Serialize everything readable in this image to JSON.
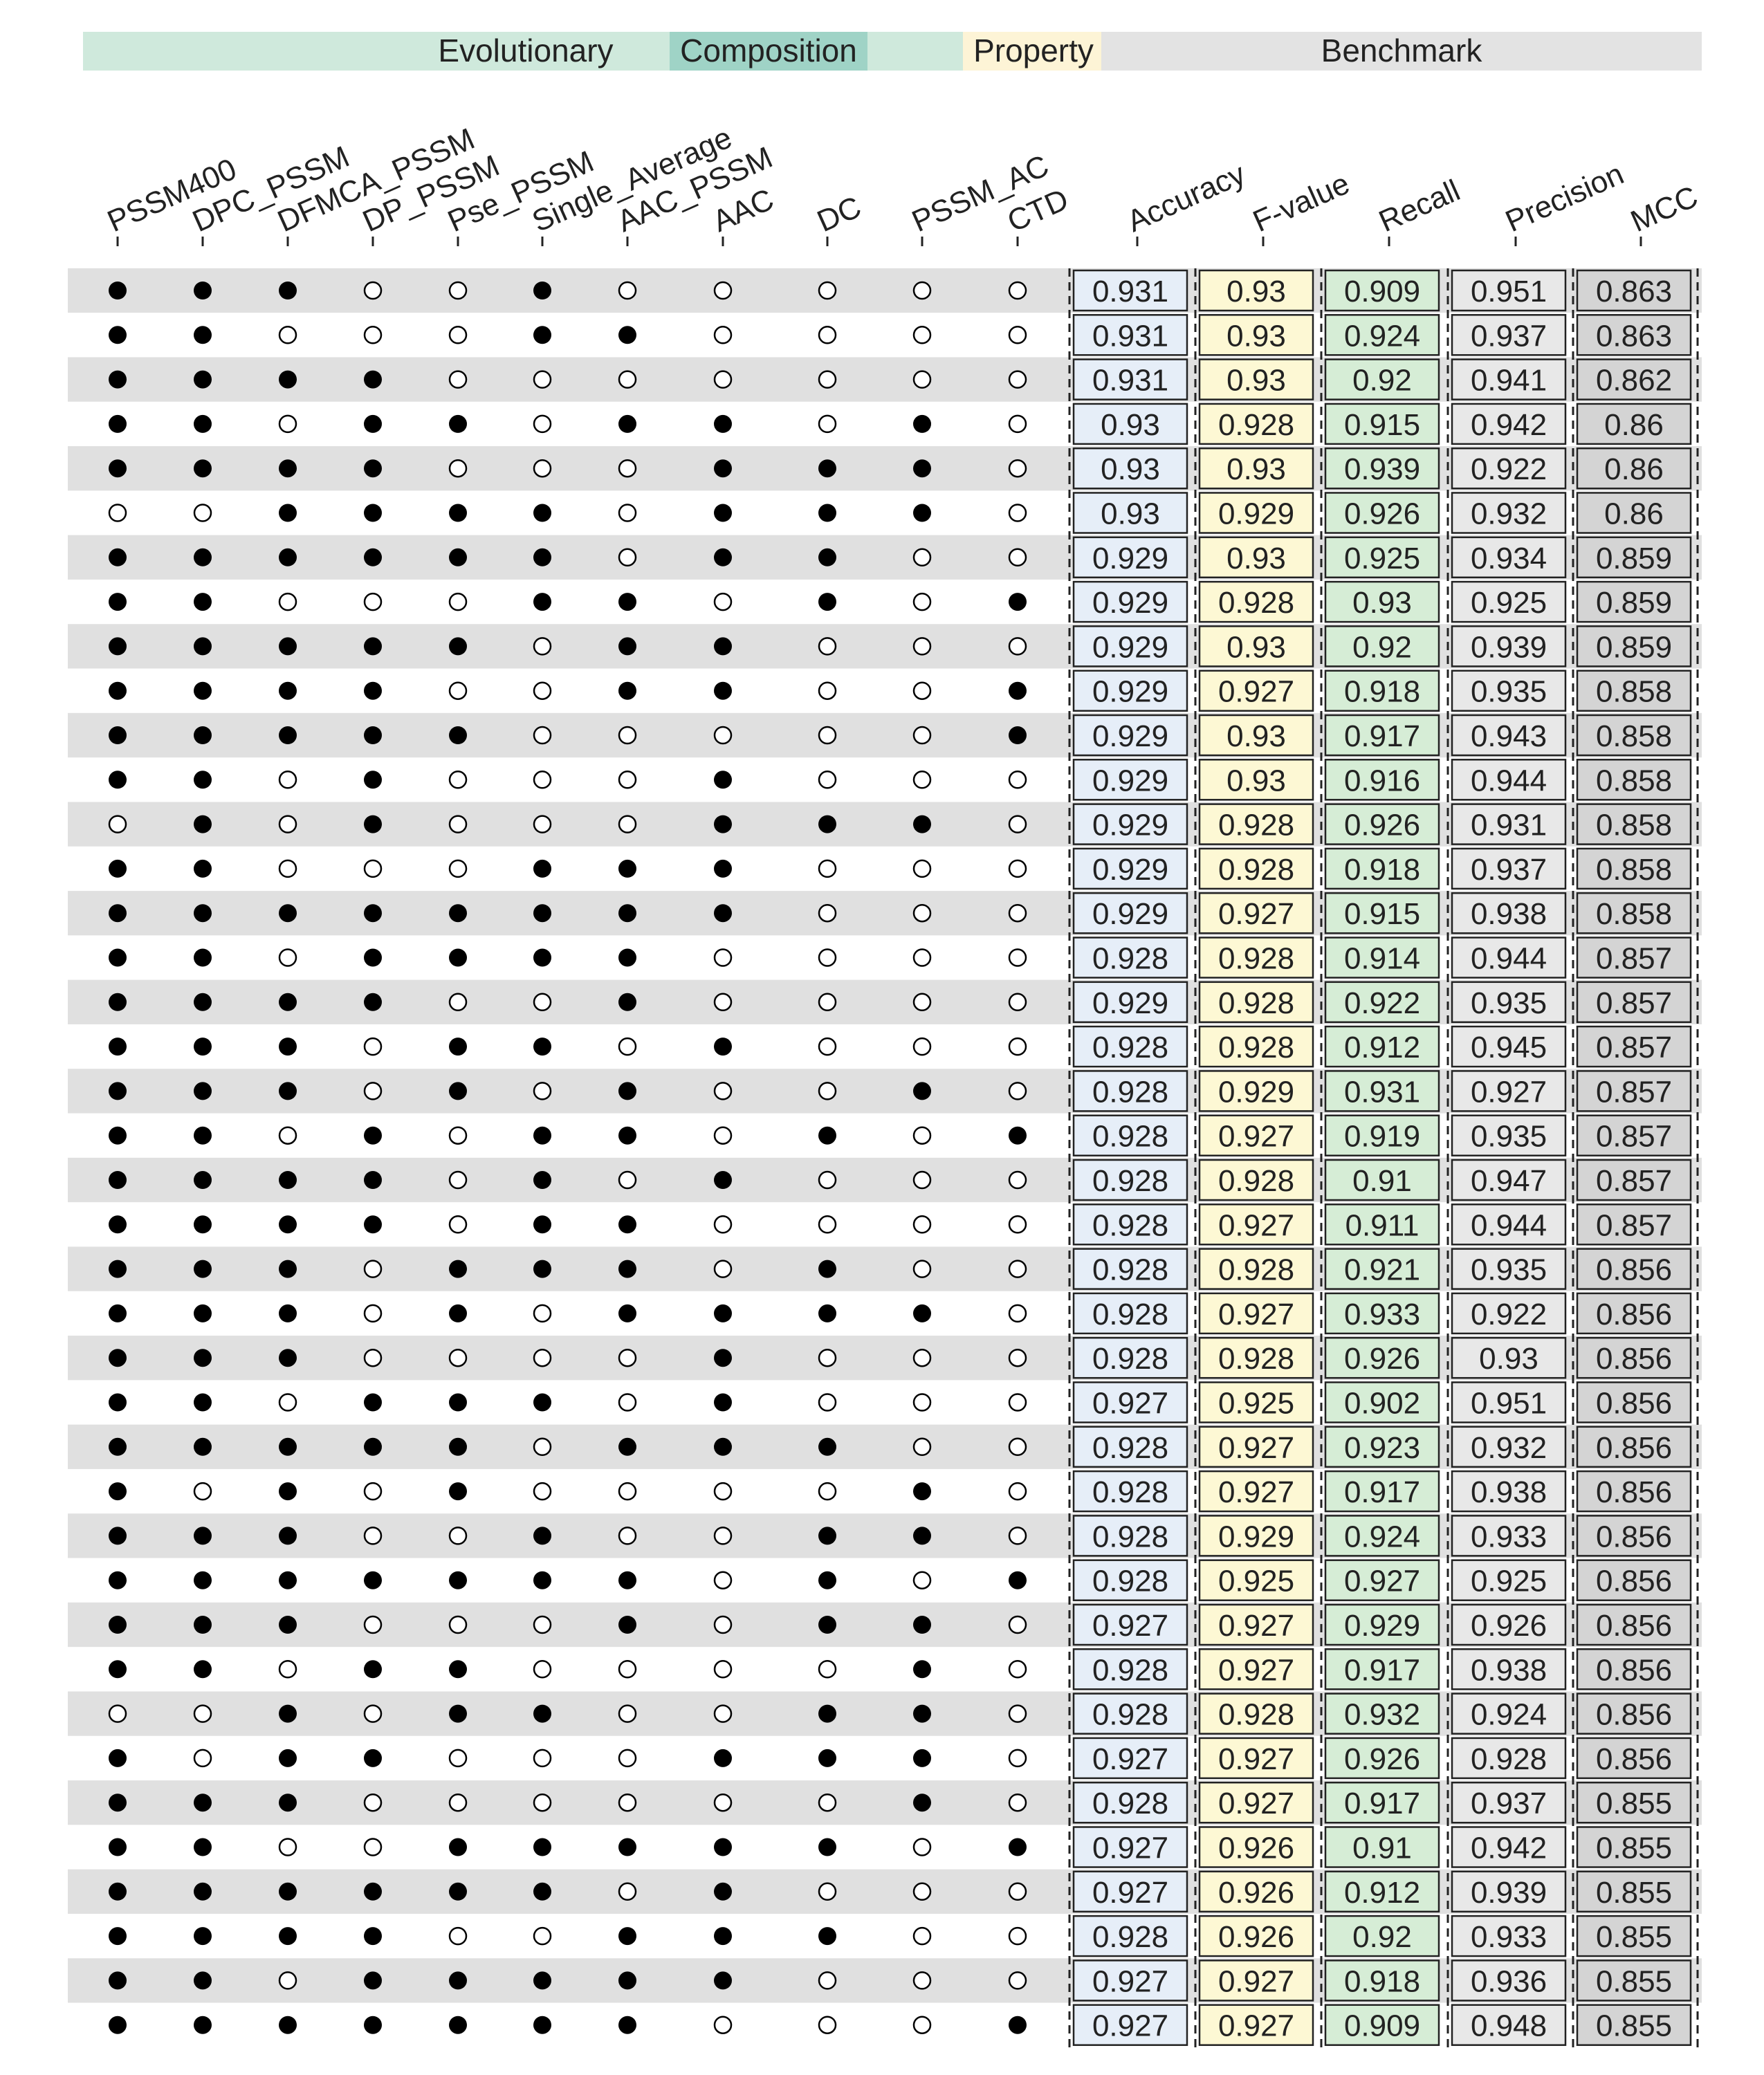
{
  "chart_data": {
    "type": "table",
    "groups": [
      {
        "label": "Evolutionary",
        "color": "#cfe9dc"
      },
      {
        "label": "Composition",
        "color": "#9fd3c6"
      },
      {
        "label": "Property",
        "color": "#fdf4d6"
      },
      {
        "label": "Benchmark",
        "color": "#e3e3e3"
      }
    ],
    "feature_columns": [
      "PSSM400",
      "DPC_PSSM",
      "DFMCA_PSSM",
      "DP_PSSM",
      "Pse_PSSM",
      "Single_Average",
      "AAC_PSSM",
      "AAC",
      "DC",
      "PSSM_AC",
      "CTD"
    ],
    "metric_columns": [
      {
        "label": "Accuracy",
        "color": "#e6eef8"
      },
      {
        "label": "F-value",
        "color": "#fdf8d4"
      },
      {
        "label": "Recall",
        "color": "#d6edd6"
      },
      {
        "label": "Precision",
        "color": "#e8e8e8"
      },
      {
        "label": "MCC",
        "color": "#d4d4d4"
      }
    ],
    "rows": [
      {
        "features": [
          1,
          1,
          1,
          0,
          0,
          1,
          0,
          0,
          0,
          0,
          0
        ],
        "metrics": [
          "0.931",
          "0.93",
          "0.909",
          "0.951",
          "0.863"
        ]
      },
      {
        "features": [
          1,
          1,
          0,
          0,
          0,
          1,
          1,
          0,
          0,
          0,
          0
        ],
        "metrics": [
          "0.931",
          "0.93",
          "0.924",
          "0.937",
          "0.863"
        ]
      },
      {
        "features": [
          1,
          1,
          1,
          1,
          0,
          0,
          0,
          0,
          0,
          0,
          0
        ],
        "metrics": [
          "0.931",
          "0.93",
          "0.92",
          "0.941",
          "0.862"
        ]
      },
      {
        "features": [
          1,
          1,
          0,
          1,
          1,
          0,
          1,
          1,
          0,
          1,
          0
        ],
        "metrics": [
          "0.93",
          "0.928",
          "0.915",
          "0.942",
          "0.86"
        ]
      },
      {
        "features": [
          1,
          1,
          1,
          1,
          0,
          0,
          0,
          1,
          1,
          1,
          0
        ],
        "metrics": [
          "0.93",
          "0.93",
          "0.939",
          "0.922",
          "0.86"
        ]
      },
      {
        "features": [
          0,
          0,
          1,
          1,
          1,
          1,
          0,
          1,
          1,
          1,
          0
        ],
        "metrics": [
          "0.93",
          "0.929",
          "0.926",
          "0.932",
          "0.86"
        ]
      },
      {
        "features": [
          1,
          1,
          1,
          1,
          1,
          1,
          0,
          1,
          1,
          0,
          0
        ],
        "metrics": [
          "0.929",
          "0.93",
          "0.925",
          "0.934",
          "0.859"
        ]
      },
      {
        "features": [
          1,
          1,
          0,
          0,
          0,
          1,
          1,
          0,
          1,
          0,
          1
        ],
        "metrics": [
          "0.929",
          "0.928",
          "0.93",
          "0.925",
          "0.859"
        ]
      },
      {
        "features": [
          1,
          1,
          1,
          1,
          1,
          0,
          1,
          1,
          0,
          0,
          0
        ],
        "metrics": [
          "0.929",
          "0.93",
          "0.92",
          "0.939",
          "0.859"
        ]
      },
      {
        "features": [
          1,
          1,
          1,
          1,
          0,
          0,
          1,
          1,
          0,
          0,
          1
        ],
        "metrics": [
          "0.929",
          "0.927",
          "0.918",
          "0.935",
          "0.858"
        ]
      },
      {
        "features": [
          1,
          1,
          1,
          1,
          1,
          0,
          0,
          0,
          0,
          0,
          1
        ],
        "metrics": [
          "0.929",
          "0.93",
          "0.917",
          "0.943",
          "0.858"
        ]
      },
      {
        "features": [
          1,
          1,
          0,
          1,
          0,
          0,
          0,
          1,
          0,
          0,
          0
        ],
        "metrics": [
          "0.929",
          "0.93",
          "0.916",
          "0.944",
          "0.858"
        ]
      },
      {
        "features": [
          0,
          1,
          0,
          1,
          0,
          0,
          0,
          1,
          1,
          1,
          0
        ],
        "metrics": [
          "0.929",
          "0.928",
          "0.926",
          "0.931",
          "0.858"
        ]
      },
      {
        "features": [
          1,
          1,
          0,
          0,
          0,
          1,
          1,
          1,
          0,
          0,
          0
        ],
        "metrics": [
          "0.929",
          "0.928",
          "0.918",
          "0.937",
          "0.858"
        ]
      },
      {
        "features": [
          1,
          1,
          1,
          1,
          1,
          1,
          1,
          1,
          0,
          0,
          0
        ],
        "metrics": [
          "0.929",
          "0.927",
          "0.915",
          "0.938",
          "0.858"
        ]
      },
      {
        "features": [
          1,
          1,
          0,
          1,
          1,
          1,
          1,
          0,
          0,
          0,
          0
        ],
        "metrics": [
          "0.928",
          "0.928",
          "0.914",
          "0.944",
          "0.857"
        ]
      },
      {
        "features": [
          1,
          1,
          1,
          1,
          0,
          0,
          1,
          0,
          0,
          0,
          0
        ],
        "metrics": [
          "0.929",
          "0.928",
          "0.922",
          "0.935",
          "0.857"
        ]
      },
      {
        "features": [
          1,
          1,
          1,
          0,
          1,
          1,
          0,
          1,
          0,
          0,
          0
        ],
        "metrics": [
          "0.928",
          "0.928",
          "0.912",
          "0.945",
          "0.857"
        ]
      },
      {
        "features": [
          1,
          1,
          1,
          0,
          1,
          0,
          1,
          0,
          0,
          1,
          0
        ],
        "metrics": [
          "0.928",
          "0.929",
          "0.931",
          "0.927",
          "0.857"
        ]
      },
      {
        "features": [
          1,
          1,
          0,
          1,
          0,
          1,
          1,
          0,
          1,
          0,
          1
        ],
        "metrics": [
          "0.928",
          "0.927",
          "0.919",
          "0.935",
          "0.857"
        ]
      },
      {
        "features": [
          1,
          1,
          1,
          1,
          0,
          1,
          0,
          1,
          0,
          0,
          0
        ],
        "metrics": [
          "0.928",
          "0.928",
          "0.91",
          "0.947",
          "0.857"
        ]
      },
      {
        "features": [
          1,
          1,
          1,
          1,
          0,
          1,
          1,
          0,
          0,
          0,
          0
        ],
        "metrics": [
          "0.928",
          "0.927",
          "0.911",
          "0.944",
          "0.857"
        ]
      },
      {
        "features": [
          1,
          1,
          1,
          0,
          1,
          1,
          1,
          0,
          1,
          0,
          0
        ],
        "metrics": [
          "0.928",
          "0.928",
          "0.921",
          "0.935",
          "0.856"
        ]
      },
      {
        "features": [
          1,
          1,
          1,
          0,
          1,
          0,
          1,
          1,
          1,
          1,
          0
        ],
        "metrics": [
          "0.928",
          "0.927",
          "0.933",
          "0.922",
          "0.856"
        ]
      },
      {
        "features": [
          1,
          1,
          1,
          0,
          0,
          0,
          0,
          1,
          0,
          0,
          0
        ],
        "metrics": [
          "0.928",
          "0.928",
          "0.926",
          "0.93",
          "0.856"
        ]
      },
      {
        "features": [
          1,
          1,
          0,
          1,
          1,
          1,
          0,
          1,
          0,
          0,
          0
        ],
        "metrics": [
          "0.927",
          "0.925",
          "0.902",
          "0.951",
          "0.856"
        ]
      },
      {
        "features": [
          1,
          1,
          1,
          1,
          1,
          0,
          1,
          1,
          1,
          0,
          0
        ],
        "metrics": [
          "0.928",
          "0.927",
          "0.923",
          "0.932",
          "0.856"
        ]
      },
      {
        "features": [
          1,
          0,
          1,
          0,
          1,
          0,
          0,
          0,
          0,
          1,
          0
        ],
        "metrics": [
          "0.928",
          "0.927",
          "0.917",
          "0.938",
          "0.856"
        ]
      },
      {
        "features": [
          1,
          1,
          1,
          0,
          0,
          1,
          0,
          0,
          1,
          1,
          0
        ],
        "metrics": [
          "0.928",
          "0.929",
          "0.924",
          "0.933",
          "0.856"
        ]
      },
      {
        "features": [
          1,
          1,
          1,
          1,
          1,
          1,
          1,
          0,
          1,
          0,
          1
        ],
        "metrics": [
          "0.928",
          "0.925",
          "0.927",
          "0.925",
          "0.856"
        ]
      },
      {
        "features": [
          1,
          1,
          1,
          0,
          0,
          0,
          1,
          0,
          1,
          1,
          0
        ],
        "metrics": [
          "0.927",
          "0.927",
          "0.929",
          "0.926",
          "0.856"
        ]
      },
      {
        "features": [
          1,
          1,
          0,
          1,
          1,
          0,
          0,
          0,
          0,
          1,
          0
        ],
        "metrics": [
          "0.928",
          "0.927",
          "0.917",
          "0.938",
          "0.856"
        ]
      },
      {
        "features": [
          0,
          0,
          1,
          0,
          1,
          1,
          0,
          0,
          1,
          1,
          0
        ],
        "metrics": [
          "0.928",
          "0.928",
          "0.932",
          "0.924",
          "0.856"
        ]
      },
      {
        "features": [
          1,
          0,
          1,
          1,
          0,
          0,
          0,
          1,
          1,
          1,
          0
        ],
        "metrics": [
          "0.927",
          "0.927",
          "0.926",
          "0.928",
          "0.856"
        ]
      },
      {
        "features": [
          1,
          1,
          1,
          0,
          0,
          0,
          0,
          0,
          0,
          1,
          0
        ],
        "metrics": [
          "0.928",
          "0.927",
          "0.917",
          "0.937",
          "0.855"
        ]
      },
      {
        "features": [
          1,
          1,
          0,
          0,
          1,
          1,
          1,
          1,
          1,
          0,
          1
        ],
        "metrics": [
          "0.927",
          "0.926",
          "0.91",
          "0.942",
          "0.855"
        ]
      },
      {
        "features": [
          1,
          1,
          1,
          1,
          1,
          1,
          0,
          1,
          0,
          0,
          0
        ],
        "metrics": [
          "0.927",
          "0.926",
          "0.912",
          "0.939",
          "0.855"
        ]
      },
      {
        "features": [
          1,
          1,
          1,
          1,
          0,
          0,
          1,
          1,
          1,
          0,
          0
        ],
        "metrics": [
          "0.928",
          "0.926",
          "0.92",
          "0.933",
          "0.855"
        ]
      },
      {
        "features": [
          1,
          1,
          0,
          1,
          1,
          1,
          1,
          1,
          0,
          0,
          0
        ],
        "metrics": [
          "0.927",
          "0.927",
          "0.918",
          "0.936",
          "0.855"
        ]
      },
      {
        "features": [
          1,
          1,
          1,
          1,
          1,
          1,
          1,
          0,
          0,
          0,
          1
        ],
        "metrics": [
          "0.927",
          "0.927",
          "0.909",
          "0.948",
          "0.855"
        ]
      }
    ]
  }
}
